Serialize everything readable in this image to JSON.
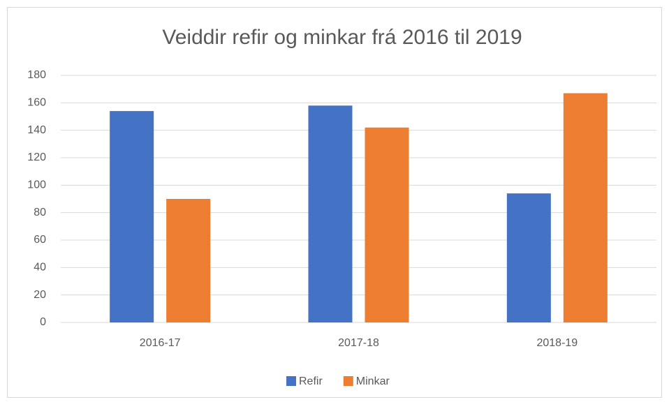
{
  "chart_data": {
    "type": "bar",
    "title": "Veiddir refir og minkar frá 2016 til 2019",
    "categories": [
      "2016-17",
      "2017-18",
      "2018-19"
    ],
    "series": [
      {
        "name": "Refir",
        "color": "#4472c4",
        "values": [
          154,
          158,
          94
        ]
      },
      {
        "name": "Minkar",
        "color": "#ed7d31",
        "values": [
          90,
          142,
          167
        ]
      }
    ],
    "ylim": [
      0,
      180
    ],
    "yticks": [
      0,
      20,
      40,
      60,
      80,
      100,
      120,
      140,
      160,
      180
    ],
    "grid": true,
    "legend": "bottom"
  }
}
